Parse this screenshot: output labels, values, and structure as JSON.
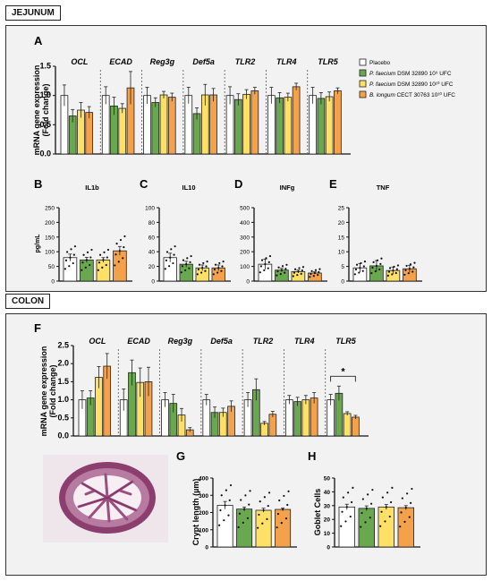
{
  "sections": {
    "jejunum": "JEJUNUM",
    "colon": "COLON"
  },
  "colors": {
    "placebo": "#ffffff",
    "pf9": "#6aa84f",
    "pf10": "#ffe066",
    "bl": "#f4a14b"
  },
  "legend": [
    {
      "key": "placebo",
      "pre": "",
      "italic": "",
      "post": "Placebo"
    },
    {
      "key": "pf9",
      "pre": "",
      "italic": "P. faecium",
      "post": " DSM 32890 10⁹ UFC"
    },
    {
      "key": "pf10",
      "pre": "",
      "italic": "P. faecium",
      "post": " DSM 32890 10¹⁰ UFC"
    },
    {
      "key": "bl",
      "pre": "",
      "italic": "B. longum",
      "post": " CECT 30763 10¹⁰ UFC"
    }
  ],
  "chart_data": [
    {
      "id": "A",
      "letter": "A",
      "type": "bar",
      "ylabel": "mRNA gene expression\n(Fold change)",
      "ylim": [
        0,
        1.5
      ],
      "yticks": [
        "0.0",
        "0.5",
        "1.0",
        "1.5"
      ],
      "categories": [
        "OCL",
        "ECAD",
        "Reg3g",
        "Def5a",
        "TLR2",
        "TLR4",
        "TLR5"
      ],
      "series": [
        {
          "key": "placebo",
          "values": [
            1.0,
            1.0,
            1.0,
            1.0,
            1.0,
            1.0,
            1.0
          ],
          "err": [
            0.18,
            0.15,
            0.14,
            0.14,
            0.15,
            0.14,
            0.14
          ]
        },
        {
          "key": "pf9",
          "values": [
            0.65,
            0.82,
            0.88,
            0.69,
            0.93,
            0.96,
            0.95
          ],
          "err": [
            0.11,
            0.15,
            0.08,
            0.1,
            0.1,
            0.09,
            0.1
          ]
        },
        {
          "key": "pf10",
          "values": [
            0.75,
            0.78,
            1.01,
            1.01,
            1.02,
            0.97,
            0.98
          ],
          "err": [
            0.13,
            0.08,
            0.06,
            0.18,
            0.08,
            0.07,
            0.08
          ]
        },
        {
          "key": "bl",
          "values": [
            0.71,
            1.13,
            0.97,
            1.01,
            1.08,
            1.15,
            1.08
          ],
          "err": [
            0.1,
            0.28,
            0.07,
            0.11,
            0.06,
            0.06,
            0.05
          ]
        }
      ]
    },
    {
      "id": "B",
      "letter": "B",
      "type": "bar",
      "title": "IL1b",
      "ylabel": "pg/mL",
      "ylim": [
        0,
        250
      ],
      "yticks": [
        "0",
        "50",
        "100",
        "150",
        "200",
        "250"
      ],
      "values": [
        80,
        72,
        72,
        103
      ],
      "err": [
        12,
        9,
        8,
        15
      ]
    },
    {
      "id": "C",
      "letter": "C",
      "type": "bar",
      "title": "IL10",
      "ylim": [
        0,
        100
      ],
      "yticks": [
        "0",
        "20",
        "40",
        "60",
        "80",
        "100"
      ],
      "values": [
        32,
        23,
        18,
        18
      ],
      "err": [
        6,
        4,
        4,
        4
      ]
    },
    {
      "id": "D",
      "letter": "D",
      "type": "bar",
      "title": "INFg",
      "ylim": [
        0,
        500
      ],
      "yticks": [
        "0",
        "100",
        "200",
        "300",
        "400",
        "500"
      ],
      "values": [
        115,
        75,
        65,
        55
      ],
      "err": [
        35,
        12,
        10,
        8
      ]
    },
    {
      "id": "E",
      "letter": "E",
      "type": "bar",
      "title": "TNF",
      "ylim": [
        0,
        25
      ],
      "yticks": [
        "0",
        "5",
        "10",
        "15",
        "20",
        "25"
      ],
      "values": [
        4.5,
        5.2,
        3.6,
        4.2
      ],
      "err": [
        1.5,
        1.8,
        1.2,
        1.2
      ]
    },
    {
      "id": "F",
      "letter": "F",
      "type": "bar",
      "ylabel": "mRNA gene expression\n(Fold change)",
      "ylim": [
        0,
        2.5
      ],
      "yticks": [
        "0.0",
        "0.5",
        "1.0",
        "1.5",
        "2.0",
        "2.5"
      ],
      "categories": [
        "OCL",
        "ECAD",
        "Reg3g",
        "Def5a",
        "TLR2",
        "TLR4",
        "TLR5"
      ],
      "series": [
        {
          "key": "placebo",
          "values": [
            1.0,
            1.0,
            1.0,
            1.0,
            1.0,
            1.0,
            1.0
          ],
          "err": [
            0.25,
            0.3,
            0.2,
            0.15,
            0.2,
            0.12,
            0.15
          ]
        },
        {
          "key": "pf9",
          "values": [
            1.05,
            1.75,
            0.9,
            0.65,
            1.28,
            0.95,
            1.18
          ],
          "err": [
            0.2,
            0.35,
            0.25,
            0.15,
            0.3,
            0.12,
            0.2
          ]
        },
        {
          "key": "pf10",
          "values": [
            1.62,
            1.48,
            0.58,
            0.65,
            0.35,
            1.0,
            0.62
          ],
          "err": [
            0.3,
            0.4,
            0.18,
            0.12,
            0.05,
            0.12,
            0.05
          ]
        },
        {
          "key": "bl",
          "values": [
            1.93,
            1.5,
            0.17,
            0.82,
            0.6,
            1.05,
            0.52
          ],
          "err": [
            0.35,
            0.4,
            0.06,
            0.15,
            0.08,
            0.15,
            0.05
          ]
        }
      ],
      "annotation": "*"
    },
    {
      "id": "G",
      "letter": "G",
      "type": "bar",
      "ylabel": "Crypt length (µm)",
      "ylim": [
        0,
        400
      ],
      "yticks": [
        "0",
        "100",
        "200",
        "300",
        "400"
      ],
      "values": [
        242,
        220,
        213,
        218
      ],
      "err": [
        22,
        12,
        12,
        8
      ]
    },
    {
      "id": "H",
      "letter": "H",
      "type": "bar",
      "ylabel": "Goblet Cells",
      "ylim": [
        0,
        50
      ],
      "yticks": [
        "0",
        "10",
        "20",
        "30",
        "40",
        "50"
      ],
      "values": [
        29,
        28,
        29,
        28.5
      ],
      "err": [
        2,
        1.8,
        1.8,
        1.5
      ]
    }
  ]
}
